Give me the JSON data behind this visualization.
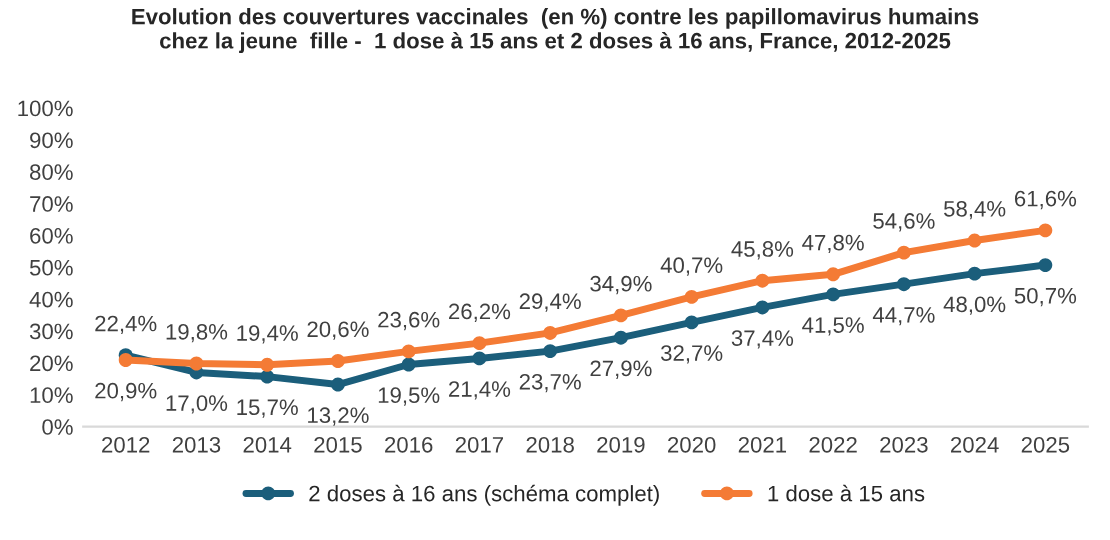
{
  "chart_data": {
    "type": "line",
    "title": "Evolution des couvertures vaccinales  (en %) contre les papillomavirus humains\nchez la jeune  fille -  1 dose à 15 ans et 2 doses à 16 ans, France, 2012-2025",
    "categories": [
      "2012",
      "2013",
      "2014",
      "2015",
      "2016",
      "2017",
      "2018",
      "2019",
      "2020",
      "2021",
      "2022",
      "2023",
      "2024",
      "2025"
    ],
    "series": [
      {
        "name": "2 doses à 16 ans (schéma complet)",
        "color": "#1b5e7b",
        "values": [
          22.4,
          17.0,
          15.7,
          13.2,
          19.5,
          21.4,
          23.7,
          27.9,
          32.7,
          37.4,
          41.5,
          44.7,
          48.0,
          50.7
        ],
        "value_labels": [
          "22,4%",
          "17,0%",
          "15,7%",
          "13,2%",
          "19,5%",
          "21,4%",
          "23,7%",
          "27,9%",
          "32,7%",
          "37,4%",
          "41,5%",
          "44,7%",
          "48,0%",
          "50,7%"
        ]
      },
      {
        "name": "1 dose à 15 ans",
        "color": "#f47b35",
        "values": [
          20.9,
          19.8,
          19.4,
          20.6,
          23.6,
          26.2,
          29.4,
          34.9,
          40.7,
          45.8,
          47.8,
          54.6,
          58.4,
          61.6
        ],
        "value_labels": [
          "20,9%",
          "19,8%",
          "19,4%",
          "20,6%",
          "23,6%",
          "26,2%",
          "29,4%",
          "34,9%",
          "40,7%",
          "45,8%",
          "47,8%",
          "54,6%",
          "58,4%",
          "61,6%"
        ]
      }
    ],
    "ylim": [
      0,
      100
    ],
    "yticks": [
      {
        "value": 0,
        "label": "0%"
      },
      {
        "value": 10,
        "label": "10%"
      },
      {
        "value": 20,
        "label": "20%"
      },
      {
        "value": 30,
        "label": "30%"
      },
      {
        "value": 40,
        "label": "40%"
      },
      {
        "value": 50,
        "label": "50%"
      },
      {
        "value": 60,
        "label": "60%"
      },
      {
        "value": 70,
        "label": "70%"
      },
      {
        "value": 80,
        "label": "80%"
      },
      {
        "value": 90,
        "label": "90%"
      },
      {
        "value": 100,
        "label": "100%"
      }
    ],
    "grid": false,
    "legend": "bottom",
    "marker": "circle",
    "line_style": "solid"
  }
}
